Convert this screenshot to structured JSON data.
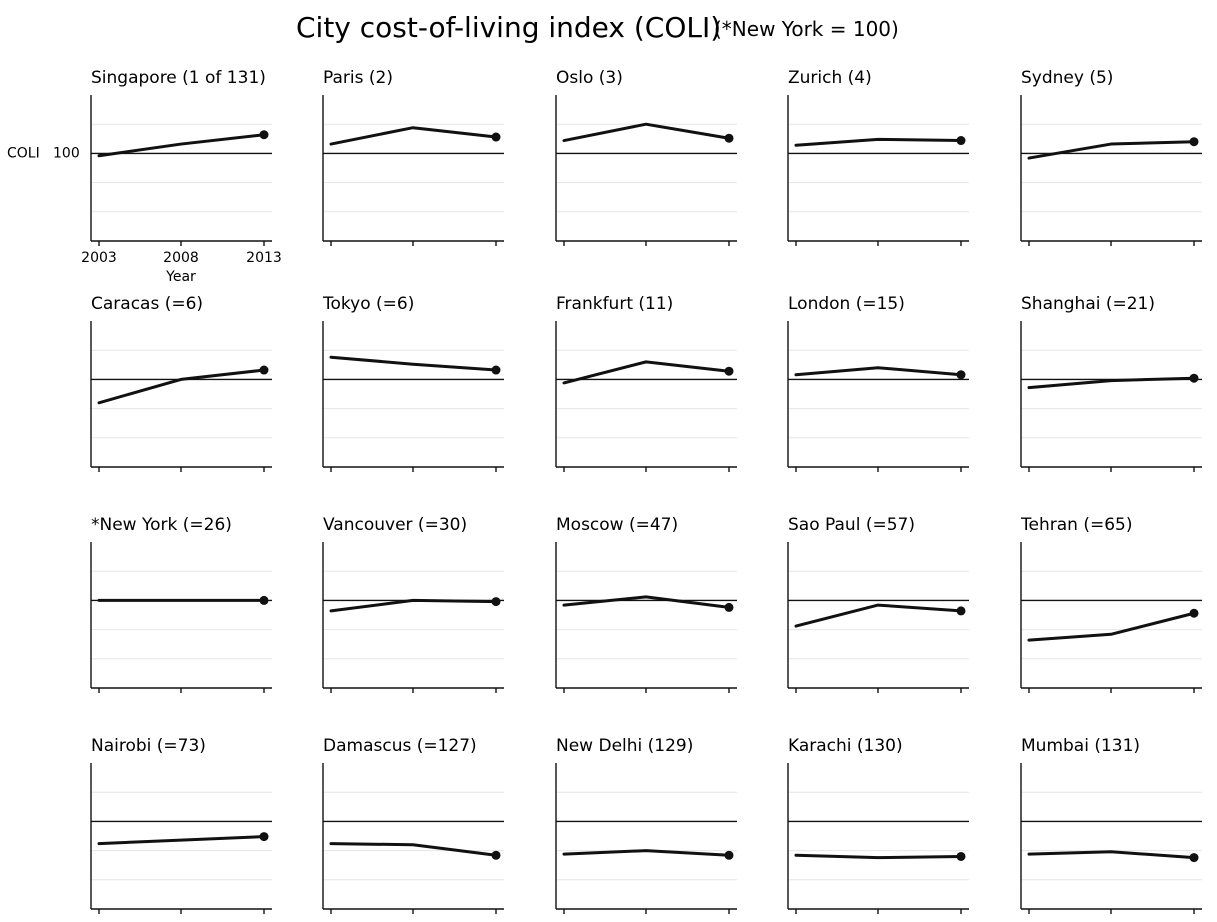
{
  "chart_data": {
    "type": "line",
    "title": "City cost-of-living index (COLI)",
    "subtitle": "(*New York = 100)",
    "x": [
      2003,
      2008,
      2013
    ],
    "x_tick_labels": [
      "2003",
      "2008",
      "2013"
    ],
    "xlabel": "Year",
    "ylabel": "COLI",
    "reference_value": 100,
    "reference_label": "100",
    "ylim": [
      25,
      150
    ],
    "grid": true,
    "panels": [
      {
        "name": "Singapore",
        "label": "Singapore (1 of 131)",
        "values": [
          98,
          108,
          116
        ]
      },
      {
        "name": "Paris",
        "label": "Paris (2)",
        "values": [
          108,
          122,
          114
        ]
      },
      {
        "name": "Oslo",
        "label": "Oslo (3)",
        "values": [
          111,
          125,
          113
        ]
      },
      {
        "name": "Zurich",
        "label": "Zurich (4)",
        "values": [
          107,
          112,
          111
        ]
      },
      {
        "name": "Sydney",
        "label": "Sydney (5)",
        "values": [
          96,
          108,
          110
        ]
      },
      {
        "name": "Caracas",
        "label": "Caracas (=6)",
        "values": [
          80,
          100,
          108
        ]
      },
      {
        "name": "Tokyo",
        "label": "Tokyo (=6)",
        "values": [
          119,
          113,
          108
        ]
      },
      {
        "name": "Frankfurt",
        "label": "Frankfurt (11)",
        "values": [
          97,
          115,
          107
        ]
      },
      {
        "name": "London",
        "label": "London (=15)",
        "values": [
          104,
          110,
          104
        ]
      },
      {
        "name": "Shanghai",
        "label": "Shanghai (=21)",
        "values": [
          93,
          99,
          101
        ]
      },
      {
        "name": "New York",
        "label": "*New York (=26)",
        "values": [
          100,
          100,
          100
        ]
      },
      {
        "name": "Vancouver",
        "label": "Vancouver (=30)",
        "values": [
          91,
          100,
          99
        ]
      },
      {
        "name": "Moscow",
        "label": "Moscow (=47)",
        "values": [
          96,
          103,
          94
        ]
      },
      {
        "name": "Sao Paul",
        "label": "Sao Paul (=57)",
        "values": [
          78,
          96,
          91
        ]
      },
      {
        "name": "Tehran",
        "label": "Tehran (=65)",
        "values": [
          66,
          71,
          89
        ]
      },
      {
        "name": "Nairobi",
        "label": "Nairobi (=73)",
        "values": [
          81,
          84,
          87
        ]
      },
      {
        "name": "Damascus",
        "label": "Damascus (=127)",
        "values": [
          81,
          80,
          71
        ]
      },
      {
        "name": "New Delhi",
        "label": "New Delhi (129)",
        "values": [
          72,
          75,
          71
        ]
      },
      {
        "name": "Karachi",
        "label": "Karachi (130)",
        "values": [
          71,
          69,
          70
        ]
      },
      {
        "name": "Mumbai",
        "label": "Mumbai (131)",
        "values": [
          72,
          74,
          69
        ]
      }
    ]
  }
}
